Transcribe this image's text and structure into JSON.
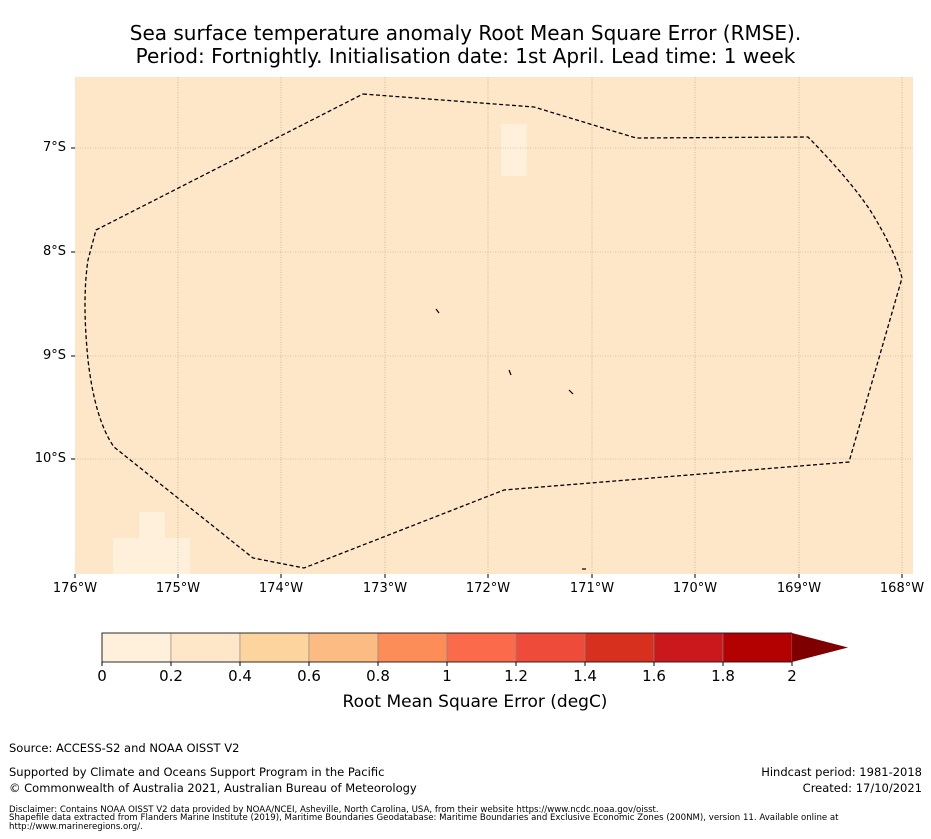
{
  "title": {
    "line1": "Sea surface temperature anomaly Root Mean Square Error (RMSE).",
    "line2": "Period: Fortnightly. Initialisation date: 1st April. Lead time: 1 week"
  },
  "map": {
    "lat_labels": [
      "7°S",
      "8°S",
      "9°S",
      "10°S"
    ],
    "lon_labels": [
      "176°W",
      "175°W",
      "174°W",
      "173°W",
      "172°W",
      "171°W",
      "170°W",
      "169°W",
      "168°W"
    ],
    "background_color": "#fee7c8",
    "low_value_color": "#fff0dc",
    "boundary_style": "dashed black EEZ outline"
  },
  "colorbar": {
    "ticks": [
      "0",
      "0.2",
      "0.4",
      "0.6",
      "0.8",
      "1",
      "1.2",
      "1.4",
      "1.6",
      "1.8",
      "2"
    ],
    "colors": [
      "#fff0dc",
      "#fee7c8",
      "#fdd49e",
      "#fdbb84",
      "#fc8d59",
      "#fb6a4a",
      "#ef4b3b",
      "#d7301f",
      "#cb181d",
      "#b30000",
      "#7f0000"
    ],
    "label": "Root Mean Square Error (degC)",
    "extend": "max"
  },
  "footer": {
    "source": "Source: ACCESS-S2 and NOAA OISST V2",
    "supported": "Supported by Climate and Oceans Support Program in the Pacific",
    "copyright": "© Commonwealth of Australia 2021, Australian Bureau of Meteorology",
    "hindcast": "Hindcast period: 1981-2018",
    "created": "Created: 17/10/2021",
    "disclaimer_1": "Disclaimer: Contains NOAA OISST V2 data provided by NOAA/NCEI, Asheville, North Carolina, USA, from their website https://www.ncdc.noaa.gov/oisst.",
    "disclaimer_2": "Shapefile data extracted from Flanders Marine Institute (2019), Maritime Boundaries Geodatabase: Maritime Boundaries and Exclusive Economic Zones (200NM), version 11. Available online at",
    "disclaimer_3": "http://www.marineregions.org/."
  }
}
